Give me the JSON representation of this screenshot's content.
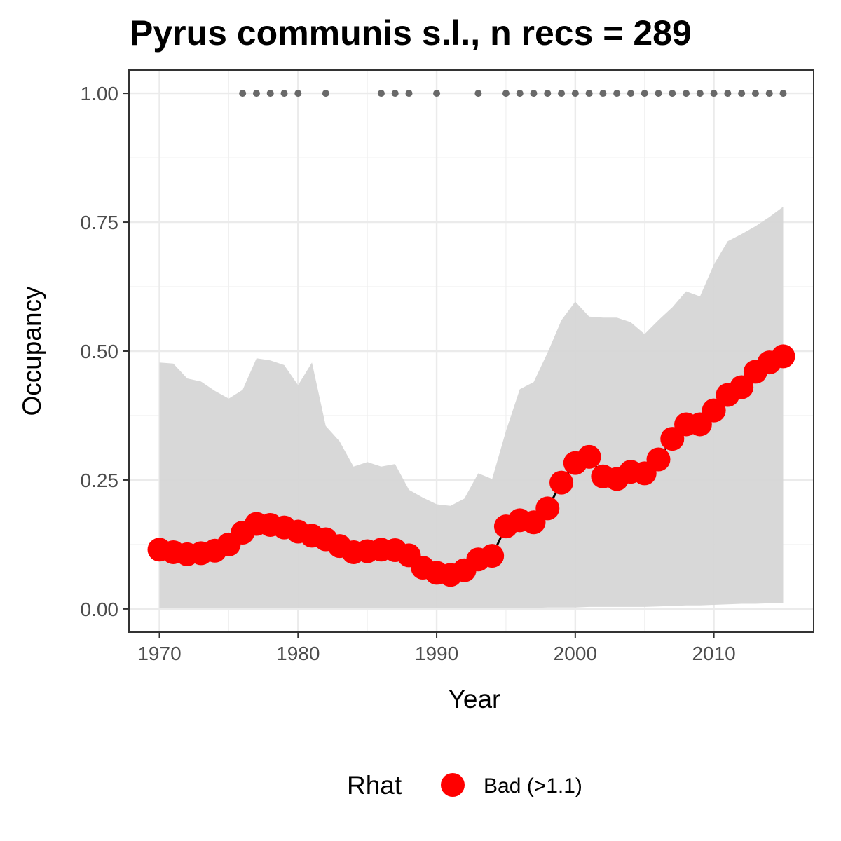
{
  "chart_data": {
    "type": "line",
    "title": "Pyrus communis s.l., n recs = 289",
    "xlabel": "Year",
    "ylabel": "Occupancy",
    "xlim": [
      1967.8,
      2017.2
    ],
    "ylim": [
      -0.045,
      1.045
    ],
    "xticks": [
      1970,
      1980,
      1990,
      2000,
      2010
    ],
    "xtick_labels": [
      "1970",
      "1980",
      "1990",
      "2000",
      "2010"
    ],
    "yticks": [
      0,
      0.25,
      0.5,
      0.75,
      1
    ],
    "ytick_labels": [
      "0.00",
      "0.25",
      "0.50",
      "0.75",
      "1.00"
    ],
    "grid": true,
    "x": [
      1970,
      1971,
      1972,
      1973,
      1974,
      1975,
      1976,
      1977,
      1978,
      1979,
      1980,
      1981,
      1982,
      1983,
      1984,
      1985,
      1986,
      1987,
      1988,
      1989,
      1990,
      1991,
      1992,
      1993,
      1994,
      1995,
      1996,
      1997,
      1998,
      1999,
      2000,
      2001,
      2002,
      2003,
      2004,
      2005,
      2006,
      2007,
      2008,
      2009,
      2010,
      2011,
      2012,
      2013,
      2014,
      2015
    ],
    "series": [
      {
        "name": "Occupancy",
        "values": [
          0.115,
          0.11,
          0.106,
          0.108,
          0.113,
          0.125,
          0.148,
          0.165,
          0.163,
          0.158,
          0.15,
          0.142,
          0.135,
          0.122,
          0.11,
          0.112,
          0.115,
          0.114,
          0.104,
          0.08,
          0.07,
          0.066,
          0.075,
          0.096,
          0.103,
          0.16,
          0.172,
          0.168,
          0.195,
          0.245,
          0.283,
          0.295,
          0.257,
          0.252,
          0.266,
          0.263,
          0.29,
          0.33,
          0.358,
          0.358,
          0.385,
          0.415,
          0.43,
          0.46,
          0.478,
          0.49
        ],
        "color": "#ff0000"
      }
    ],
    "ci_upper": [
      0.478,
      0.476,
      0.447,
      0.441,
      0.423,
      0.408,
      0.425,
      0.486,
      0.482,
      0.473,
      0.434,
      0.478,
      0.355,
      0.325,
      0.276,
      0.285,
      0.276,
      0.281,
      0.231,
      0.216,
      0.203,
      0.2,
      0.214,
      0.263,
      0.252,
      0.345,
      0.426,
      0.44,
      0.497,
      0.56,
      0.596,
      0.567,
      0.565,
      0.565,
      0.556,
      0.533,
      0.56,
      0.585,
      0.616,
      0.606,
      0.668,
      0.713,
      0.727,
      0.742,
      0.76,
      0.78
    ],
    "ci_lower": [
      0.002,
      0.002,
      0.002,
      0.002,
      0.002,
      0.002,
      0.002,
      0.002,
      0.002,
      0.002,
      0.002,
      0.002,
      0.002,
      0.002,
      0.002,
      0.002,
      0.002,
      0.002,
      0.002,
      0.002,
      0.002,
      0.002,
      0.002,
      0.002,
      0.002,
      0.002,
      0.002,
      0.002,
      0.003,
      0.003,
      0.003,
      0.004,
      0.004,
      0.004,
      0.004,
      0.004,
      0.005,
      0.006,
      0.007,
      0.007,
      0.008,
      0.009,
      0.01,
      0.01,
      0.011,
      0.012
    ],
    "ci_color": "#d6d6d6",
    "record_years": [
      1976,
      1977,
      1978,
      1979,
      1980,
      1982,
      1986,
      1987,
      1988,
      1990,
      1993,
      1995,
      1996,
      1997,
      1998,
      1999,
      2000,
      2001,
      2002,
      2003,
      2004,
      2005,
      2006,
      2007,
      2008,
      2009,
      2010,
      2011,
      2012,
      2013,
      2014,
      2015
    ],
    "record_marker_y": 1.0,
    "record_color": "#696969",
    "legend": {
      "title": "Rhat",
      "label": "Bad (>1.1)",
      "color": "#ff0000",
      "position": "bottom"
    }
  }
}
